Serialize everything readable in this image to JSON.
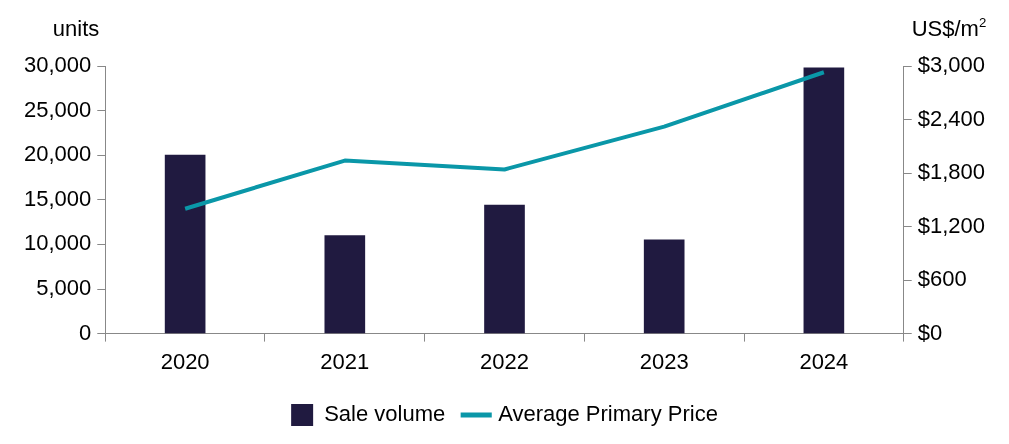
{
  "chart_data": {
    "type": "bar",
    "categories": [
      "2020",
      "2021",
      "2022",
      "2023",
      "2024"
    ],
    "series": [
      {
        "name": "Sale volume",
        "color": "#201a40",
        "values": [
          20000,
          11000,
          14400,
          10500,
          29800
        ]
      },
      {
        "name": "Average Primary Price",
        "type": "line",
        "axis": "y2",
        "color": "#0a97a8",
        "values": [
          1400,
          1940,
          1840,
          2320,
          2930
        ]
      }
    ],
    "ylabel": "units",
    "y2label": "US$/m$^{2}$",
    "ylim": [
      0,
      30000
    ],
    "yticks": [
      {
        "value": 0,
        "label": "0"
      },
      {
        "value": 5000,
        "label": "5,000"
      },
      {
        "value": 10000,
        "label": "10,000"
      },
      {
        "value": 15000,
        "label": "15,000"
      },
      {
        "value": 20000,
        "label": "20,000"
      },
      {
        "value": 25000,
        "label": "25,000"
      },
      {
        "value": 30000,
        "label": "30,000"
      }
    ],
    "y2lim": [
      0,
      3000
    ],
    "y2ticks": [
      {
        "value": 0,
        "label": "$0"
      },
      {
        "value": 600,
        "label": "$600"
      },
      {
        "value": 1200,
        "label": "$1,200"
      },
      {
        "value": 1800,
        "label": "$1,800"
      },
      {
        "value": 2400,
        "label": "$2,400"
      },
      {
        "value": 3000,
        "label": "$3,000"
      }
    ],
    "grid": false,
    "legend": "bottom",
    "marker": "none",
    "line_style": "solid"
  }
}
